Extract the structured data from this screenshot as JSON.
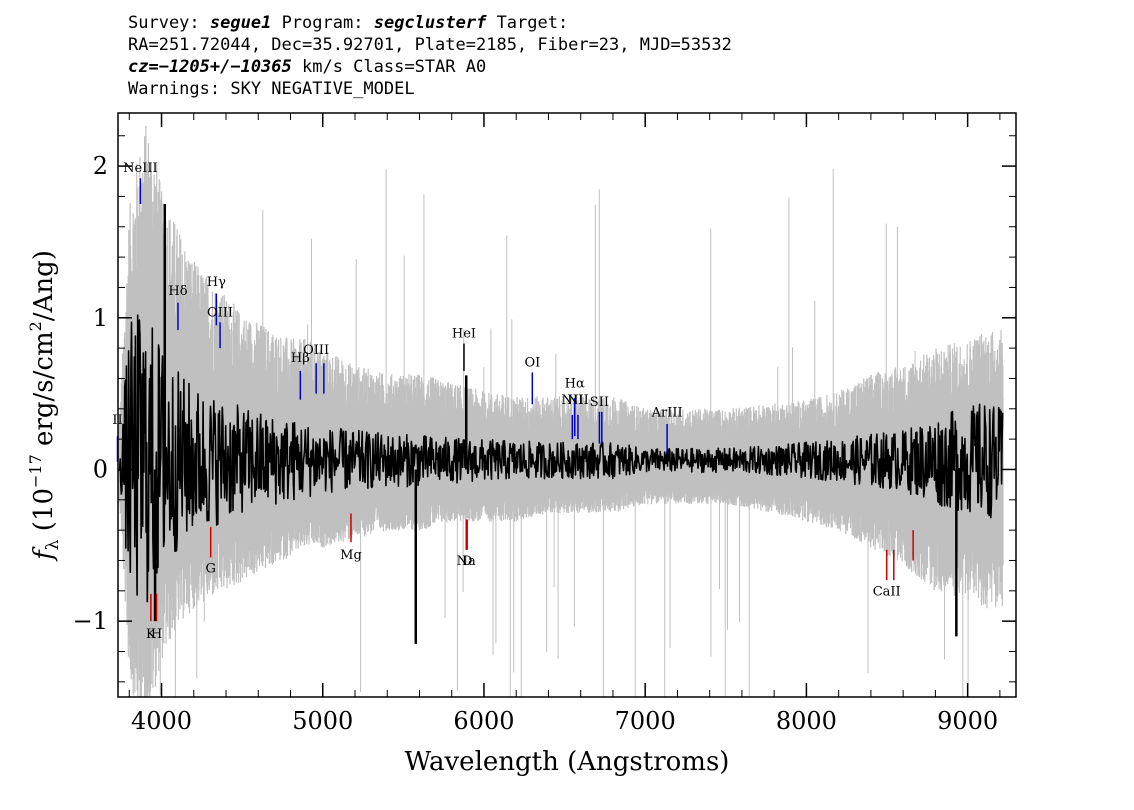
{
  "header": {
    "line1": {
      "survey_label": "Survey:",
      "survey": "segue1",
      "program_label": "Program:",
      "program": "segclusterf",
      "target_label": "Target:"
    },
    "line2": "RA=251.72044, Dec=35.92701, Plate=2185, Fiber=23, MJD=53532",
    "line3": {
      "cz": "cz=−1205+/−10365",
      "rest": " km/s Class=STAR A0"
    },
    "line4": "Warnings: SKY NEGATIVE_MODEL"
  },
  "chart_data": {
    "type": "line",
    "title": "",
    "xlabel": "Wavelength (Angstroms)",
    "ylabel_parts": {
      "f": "f",
      "sub": "λ",
      "open": " (10",
      "exp": "−17",
      "mid": " erg/s/cm",
      "exp2": "2",
      "close": "/Ang)"
    },
    "xlim": [
      3730,
      9300
    ],
    "ylim": [
      -1.5,
      2.35
    ],
    "xticks": [
      4000,
      5000,
      6000,
      7000,
      8000,
      9000
    ],
    "yticks": [
      -1,
      0,
      1,
      2
    ],
    "series": [
      {
        "role": "error-band",
        "color": "#c0c0c0",
        "x": [
          3740,
          3800,
          3850,
          3900,
          3950,
          4000,
          4100,
          4200,
          4300,
          4400,
          4500,
          4600,
          4700,
          4800,
          4900,
          5000,
          5200,
          5400,
          5600,
          5800,
          6000,
          6200,
          6400,
          6600,
          6800,
          7000,
          7200,
          7500,
          7800,
          8000,
          8200,
          8400,
          8600,
          8800,
          9000,
          9100,
          9200
        ],
        "upper": [
          0.3,
          1.5,
          1.8,
          2.0,
          1.9,
          1.6,
          1.4,
          1.2,
          1.1,
          1.0,
          0.9,
          0.85,
          0.8,
          0.75,
          0.75,
          0.7,
          0.6,
          0.55,
          0.55,
          0.5,
          0.45,
          0.42,
          0.42,
          0.42,
          0.42,
          0.35,
          0.35,
          0.35,
          0.38,
          0.4,
          0.45,
          0.55,
          0.6,
          0.7,
          0.75,
          0.8,
          0.8
        ],
        "lower": [
          -0.2,
          -1.2,
          -1.4,
          -1.5,
          -1.3,
          -1.1,
          -0.9,
          -0.8,
          -0.75,
          -0.7,
          -0.65,
          -0.6,
          -0.55,
          -0.5,
          -0.45,
          -0.45,
          -0.4,
          -0.35,
          -0.35,
          -0.3,
          -0.3,
          -0.3,
          -0.25,
          -0.25,
          -0.25,
          -0.2,
          -0.2,
          -0.2,
          -0.25,
          -0.3,
          -0.35,
          -0.45,
          -0.55,
          -0.7,
          -0.75,
          -0.8,
          -0.8
        ]
      },
      {
        "role": "flux",
        "color": "#000000",
        "x": [
          3740,
          3800,
          3850,
          3900,
          3950,
          4000,
          4100,
          4200,
          4300,
          4400,
          4500,
          4600,
          4700,
          4800,
          4900,
          5000,
          5200,
          5400,
          5600,
          5800,
          6000,
          6200,
          6400,
          6600,
          6800,
          7000,
          7200,
          7500,
          7800,
          8000,
          8200,
          8400,
          8600,
          8800,
          9000,
          9100,
          9200
        ],
        "amplitude": [
          0.1,
          0.9,
          1.0,
          1.0,
          0.9,
          0.8,
          0.6,
          0.5,
          0.45,
          0.4,
          0.35,
          0.33,
          0.3,
          0.28,
          0.25,
          0.22,
          0.2,
          0.18,
          0.17,
          0.15,
          0.14,
          0.13,
          0.12,
          0.12,
          0.12,
          0.08,
          0.08,
          0.08,
          0.1,
          0.12,
          0.14,
          0.18,
          0.2,
          0.3,
          0.35,
          0.4,
          0.35
        ]
      }
    ],
    "spikes": [
      {
        "x": 5577,
        "y": -1.15
      },
      {
        "x": 8930,
        "y": -1.1
      },
      {
        "x": 3960,
        "y": -1.0
      },
      {
        "x": 4020,
        "y": 1.75
      },
      {
        "x": 5890,
        "y": 0.62
      }
    ],
    "emission_lines": [
      {
        "label": "NeIII",
        "x": 3869,
        "y0": 1.75,
        "y1": 1.92,
        "label_y": 1.96,
        "color": "#0000cc"
      },
      {
        "label": "II",
        "x": 3727,
        "y0": 0.05,
        "y1": 0.22,
        "label_y": 0.3,
        "color": "#0000cc"
      },
      {
        "label": "Hδ",
        "x": 4102,
        "y0": 0.92,
        "y1": 1.1,
        "label_y": 1.15,
        "color": "#0000cc"
      },
      {
        "label": "Hγ",
        "x": 4340,
        "y0": 0.95,
        "y1": 1.16,
        "label_y": 1.21,
        "color": "#0000cc"
      },
      {
        "label": "OIII",
        "x": 4363,
        "y0": 0.8,
        "y1": 0.97,
        "label_y": 1.01,
        "color": "#0000cc"
      },
      {
        "label": "Hβ",
        "x": 4861,
        "y0": 0.46,
        "y1": 0.65,
        "label_y": 0.71,
        "color": "#0000cc"
      },
      {
        "label": "OIII",
        "x": 4959,
        "y0": 0.5,
        "y1": 0.7,
        "label_y": 0.76,
        "color": "#0000cc"
      },
      {
        "label": "",
        "x": 5007,
        "y0": 0.5,
        "y1": 0.7,
        "label_y": 0.76,
        "color": "#0000cc"
      },
      {
        "label": "HeI",
        "x": 5876,
        "y0": 0.65,
        "y1": 0.83,
        "label_y": 0.87,
        "color": "#000000"
      },
      {
        "label": "OI",
        "x": 6300,
        "y0": 0.43,
        "y1": 0.64,
        "label_y": 0.68,
        "color": "#0000cc"
      },
      {
        "label": "NII",
        "x": 6548,
        "y0": 0.2,
        "y1": 0.36,
        "label_y": 0.43,
        "color": "#0000cc"
      },
      {
        "label": "Hα",
        "x": 6563,
        "y0": 0.22,
        "y1": 0.47,
        "label_y": 0.54,
        "color": "#0000cc"
      },
      {
        "label": "NII",
        "x": 6583,
        "y0": 0.2,
        "y1": 0.36,
        "label_y": 0.43,
        "color": "#0000cc"
      },
      {
        "label": "SII",
        "x": 6716,
        "y0": 0.17,
        "y1": 0.38,
        "label_y": 0.42,
        "color": "#0000cc"
      },
      {
        "label": "",
        "x": 6731,
        "y0": 0.17,
        "y1": 0.38,
        "label_y": 0.42,
        "color": "#0000cc"
      },
      {
        "label": "ArIII",
        "x": 7136,
        "y0": 0.1,
        "y1": 0.3,
        "label_y": 0.35,
        "color": "#0000cc"
      }
    ],
    "absorption_lines": [
      {
        "label": "K",
        "x": 3934,
        "y0": -0.82,
        "y1": -1.0,
        "label_y": -1.11,
        "color": "#cc0000"
      },
      {
        "label": "H",
        "x": 3969,
        "y0": -0.82,
        "y1": -1.0,
        "label_y": -1.11,
        "color": "#cc0000"
      },
      {
        "label": "G",
        "x": 4305,
        "y0": -0.38,
        "y1": -0.58,
        "label_y": -0.68,
        "color": "#cc0000"
      },
      {
        "label": "Mg",
        "x": 5175,
        "y0": -0.29,
        "y1": -0.48,
        "label_y": -0.59,
        "color": "#cc0000"
      },
      {
        "label": "Na",
        "x": 5890,
        "y0": -0.33,
        "y1": -0.53,
        "label_y": -0.63,
        "color": "#cc0000"
      },
      {
        "label": "D",
        "x": 5896,
        "y0": -0.33,
        "y1": -0.53,
        "label_y": -0.63,
        "color": "#cc0000"
      },
      {
        "label": "CaII",
        "x": 8498,
        "y0": -0.53,
        "y1": -0.73,
        "label_y": -0.83,
        "color": "#cc0000"
      },
      {
        "label": "",
        "x": 8542,
        "y0": -0.53,
        "y1": -0.73,
        "label_y": -0.83,
        "color": "#cc0000"
      },
      {
        "label": "",
        "x": 8662,
        "y0": -0.4,
        "y1": -0.6,
        "label_y": -0.83,
        "color": "#cc0000"
      }
    ]
  }
}
